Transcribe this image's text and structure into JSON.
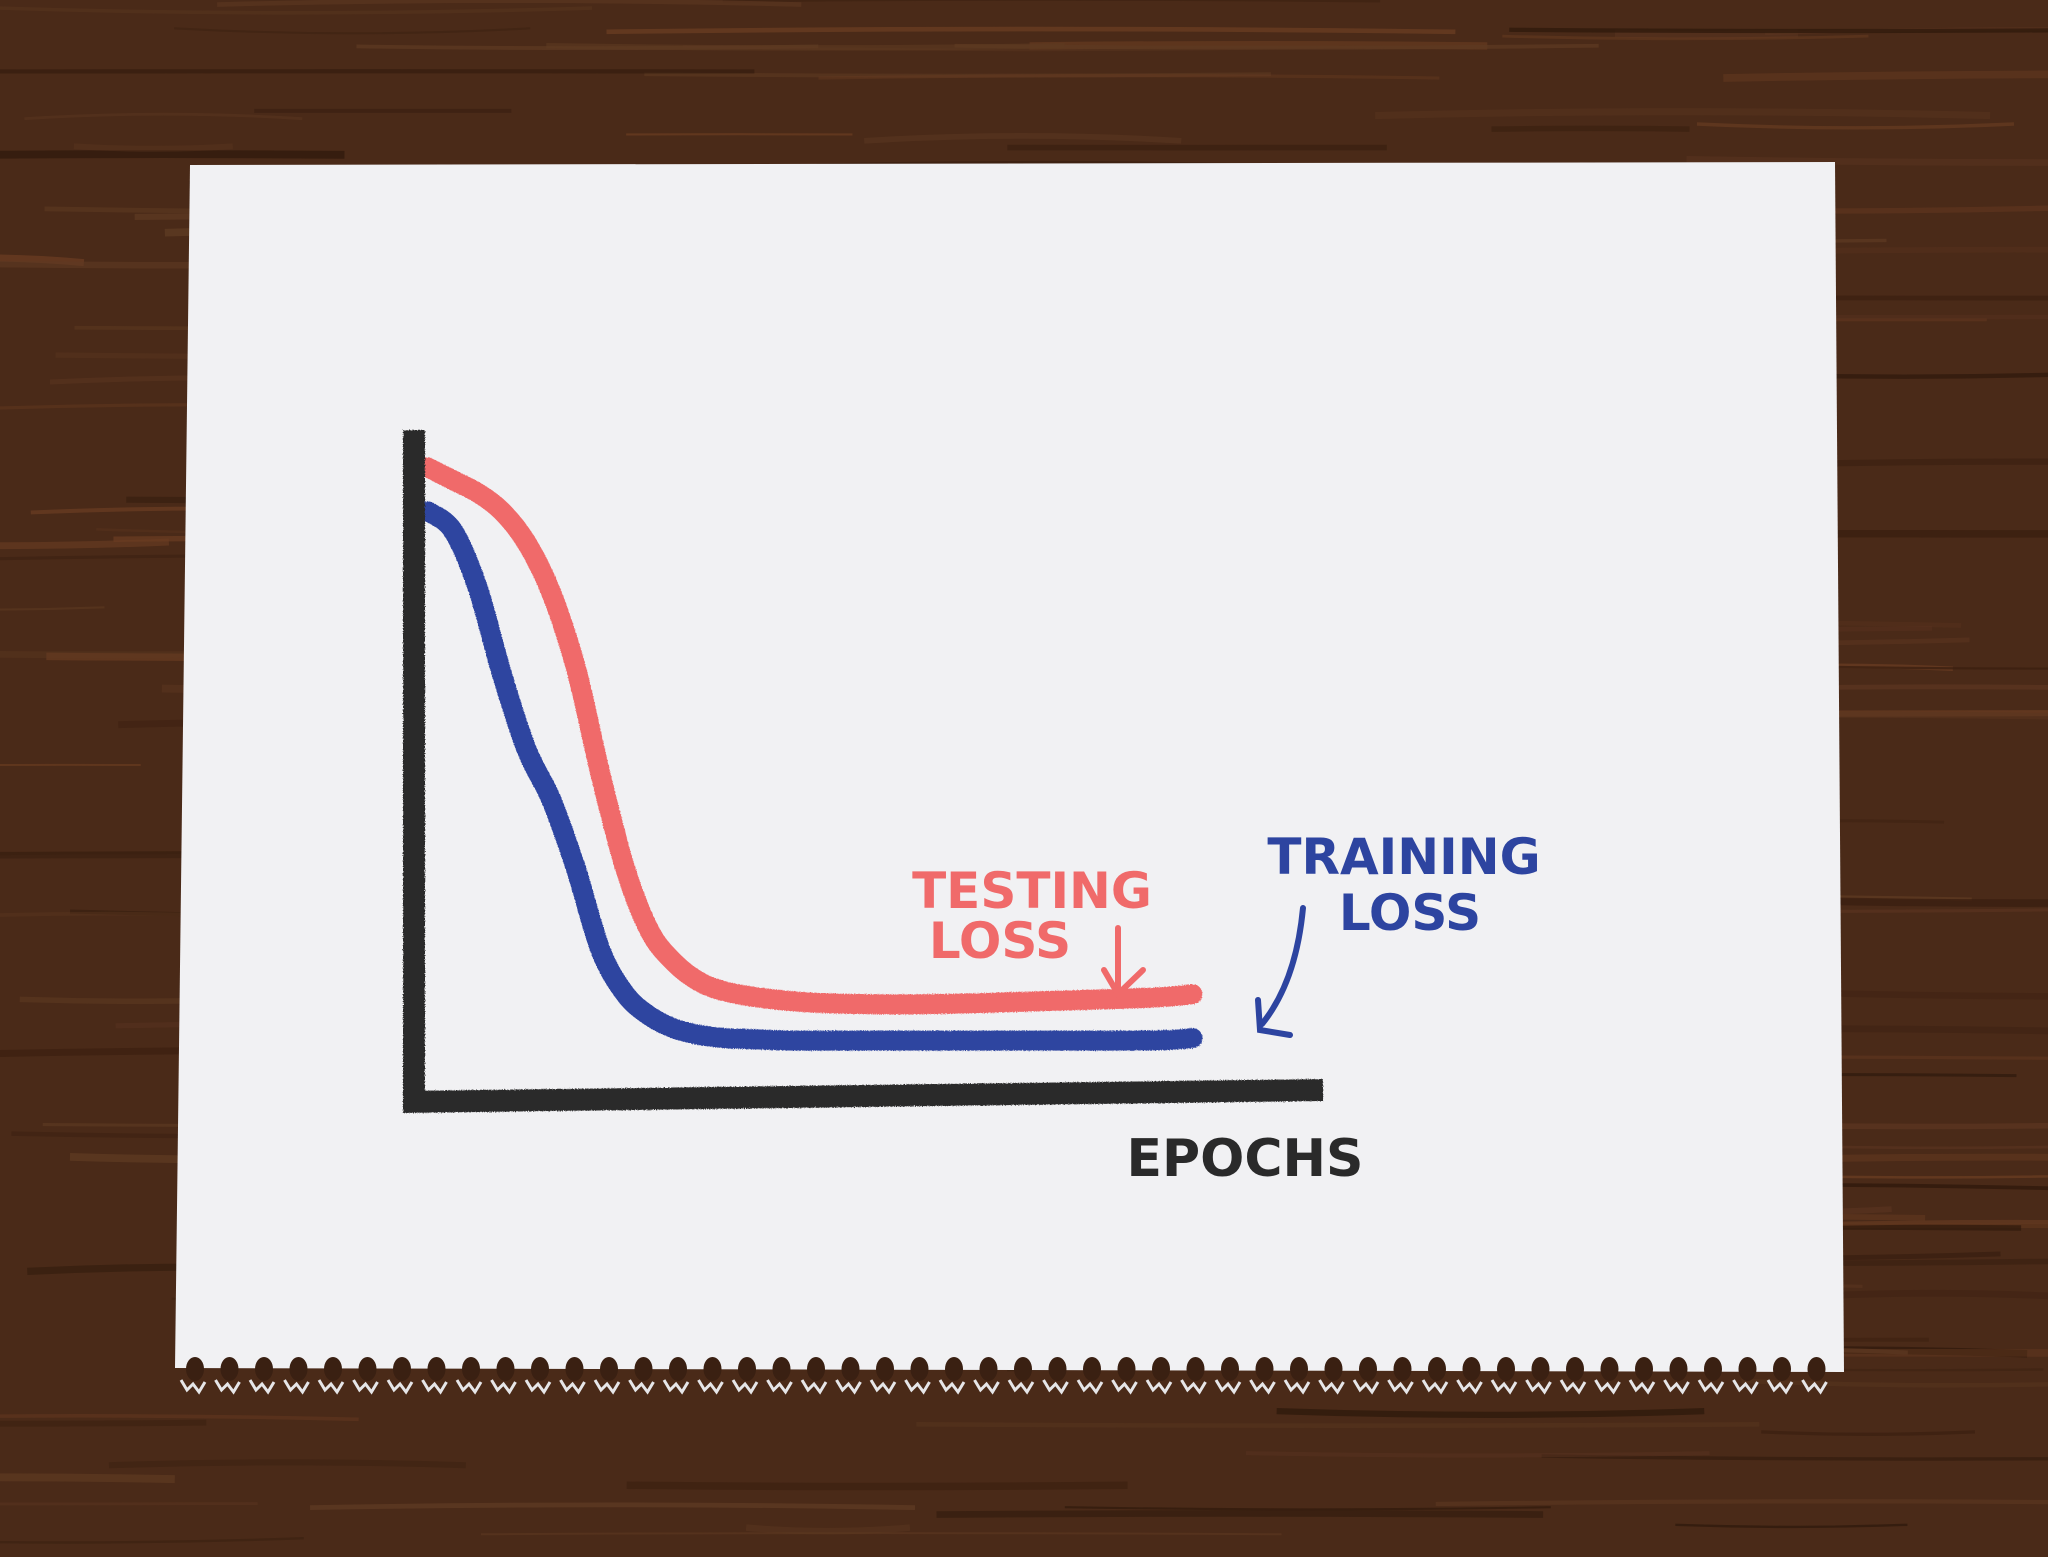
{
  "colors": {
    "desk": "#4a2a18",
    "paper": "#f1f1f3",
    "axis": "#2a2a2a",
    "testing": "#f06a6a",
    "training": "#2d44a0"
  },
  "chart_data": {
    "type": "line",
    "xlabel": "EPOCHS",
    "ylabel": "",
    "title": "",
    "grid": false,
    "xlim": [
      0,
      100
    ],
    "ylim": [
      0,
      100
    ],
    "series": [
      {
        "name": "TESTING LOSS",
        "color": "#f06a6a",
        "x": [
          0,
          3,
          6,
          9,
          12,
          15,
          18,
          21,
          24,
          27,
          30,
          33,
          36,
          40,
          45,
          50,
          55,
          60,
          65,
          70,
          75,
          80,
          85,
          90,
          93
        ],
        "y": [
          98,
          96,
          94,
          91,
          86,
          78,
          66,
          49,
          34,
          24,
          19,
          16,
          14.5,
          13.5,
          12.8,
          12.5,
          12.4,
          12.4,
          12.5,
          12.7,
          12.9,
          13.1,
          13.3,
          13.6,
          14.0
        ]
      },
      {
        "name": "TRAINING LOSS",
        "color": "#2d44a0",
        "x": [
          0,
          3,
          6,
          9,
          12,
          15,
          18,
          21,
          24,
          27,
          30,
          33,
          36,
          40,
          45,
          50,
          55,
          60,
          65,
          70,
          75,
          80,
          85,
          90,
          93
        ],
        "y": [
          91,
          88,
          79,
          65,
          53,
          45,
          34,
          21,
          14,
          10.5,
          8.5,
          7.5,
          7.0,
          6.8,
          6.6,
          6.6,
          6.6,
          6.6,
          6.6,
          6.6,
          6.6,
          6.6,
          6.6,
          6.7,
          7.0
        ]
      }
    ],
    "annotations": [
      {
        "lines": [
          "TESTING",
          "LOSS"
        ],
        "color": "#f06a6a"
      },
      {
        "lines": [
          "TRAINING",
          "LOSS"
        ],
        "color": "#2d44a0"
      }
    ]
  }
}
